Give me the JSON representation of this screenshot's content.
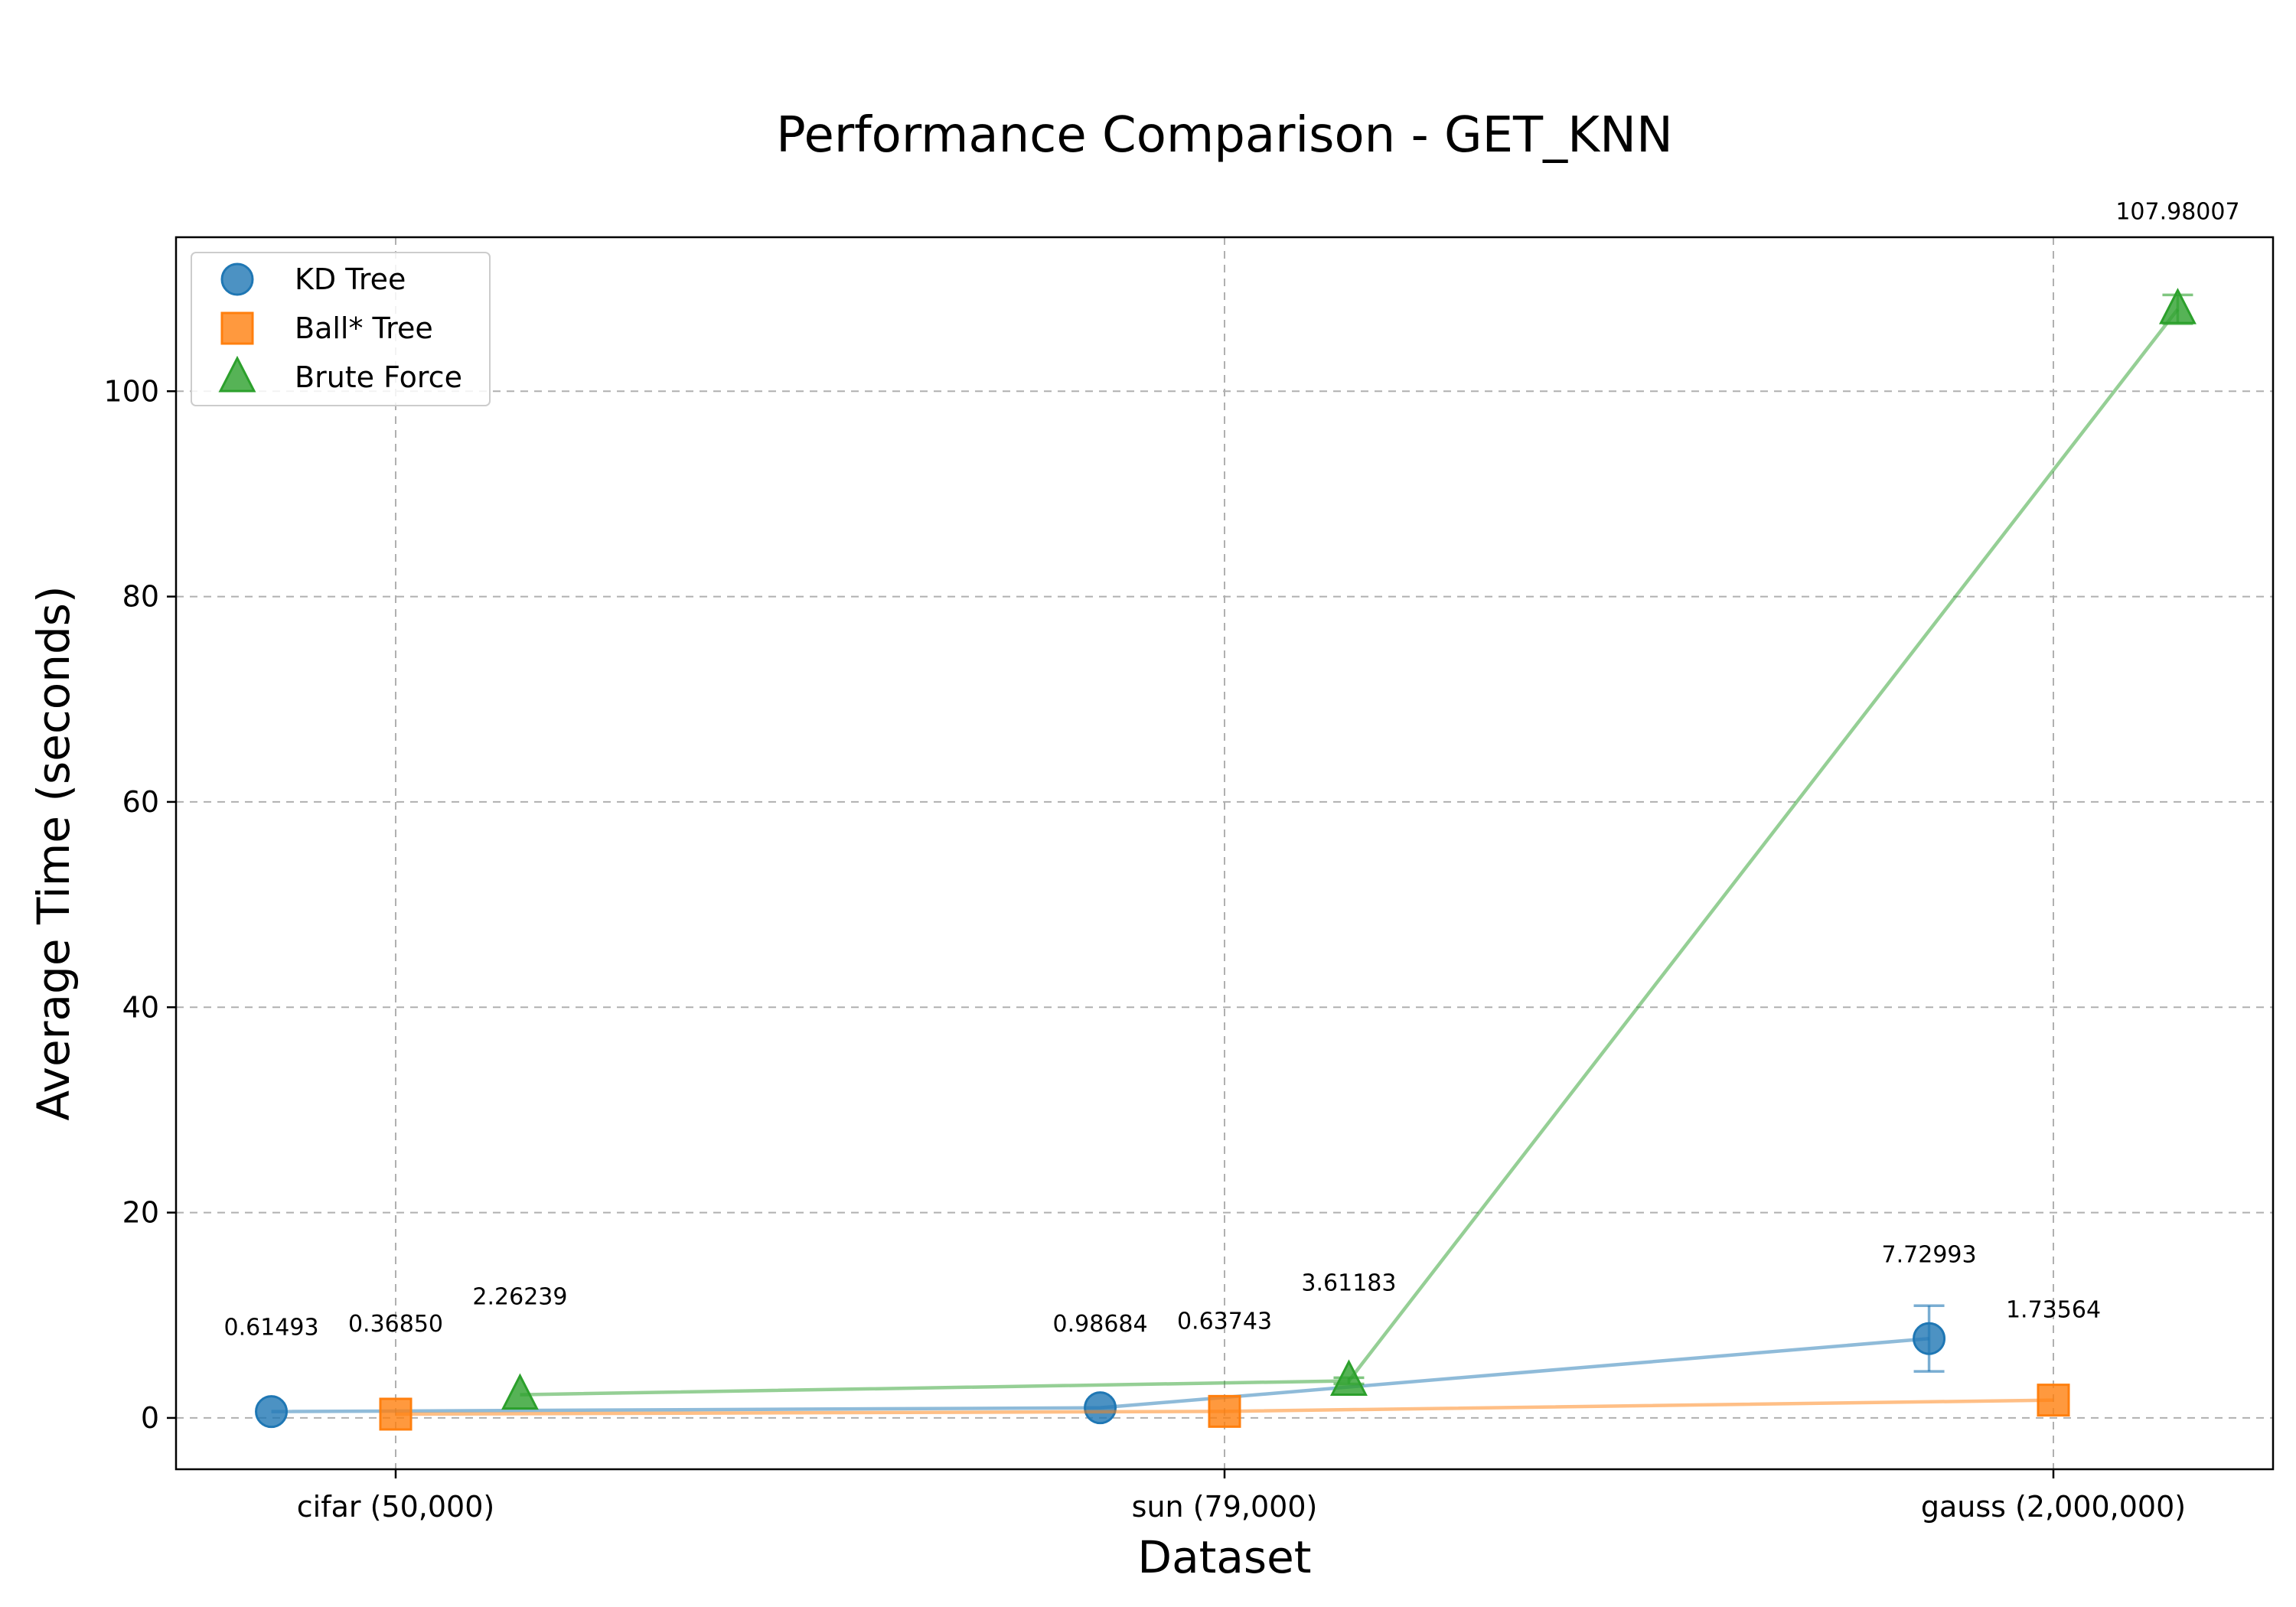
{
  "chart_data": {
    "type": "scatter",
    "title": "Performance Comparison - GET_KNN",
    "xlabel": "Dataset",
    "ylabel": "Average Time (seconds)",
    "categories": [
      "cifar (50,000)",
      "sun (79,000)",
      "gauss (2,000,000)"
    ],
    "ylim": [
      -5,
      115
    ],
    "yticks": [
      0,
      20,
      40,
      60,
      80,
      100
    ],
    "grid": true,
    "legend_position": "upper-left",
    "series": [
      {
        "name": "KD Tree",
        "marker": "circle",
        "color": "#1f77b4",
        "offset": -0.15,
        "values": [
          0.61493,
          0.98684,
          7.72993
        ],
        "labels": [
          "0.61493",
          "0.98684",
          "7.72993"
        ],
        "error": [
          0.0,
          0.0,
          3.2
        ]
      },
      {
        "name": "Ball* Tree",
        "marker": "square",
        "color": "#ff7f0e",
        "offset": 0.0,
        "values": [
          0.3685,
          0.63743,
          1.73564
        ],
        "labels": [
          "0.36850",
          "0.63743",
          "1.73564"
        ],
        "error": [
          0.0,
          0.0,
          0.0
        ]
      },
      {
        "name": "Brute Force",
        "marker": "triangle",
        "color": "#2ca02c",
        "offset": 0.15,
        "values": [
          2.26239,
          3.61183,
          107.98007
        ],
        "labels": [
          "2.26239",
          "3.61183",
          "107.98007"
        ],
        "error": [
          0.0,
          0.3,
          1.4
        ]
      }
    ]
  }
}
